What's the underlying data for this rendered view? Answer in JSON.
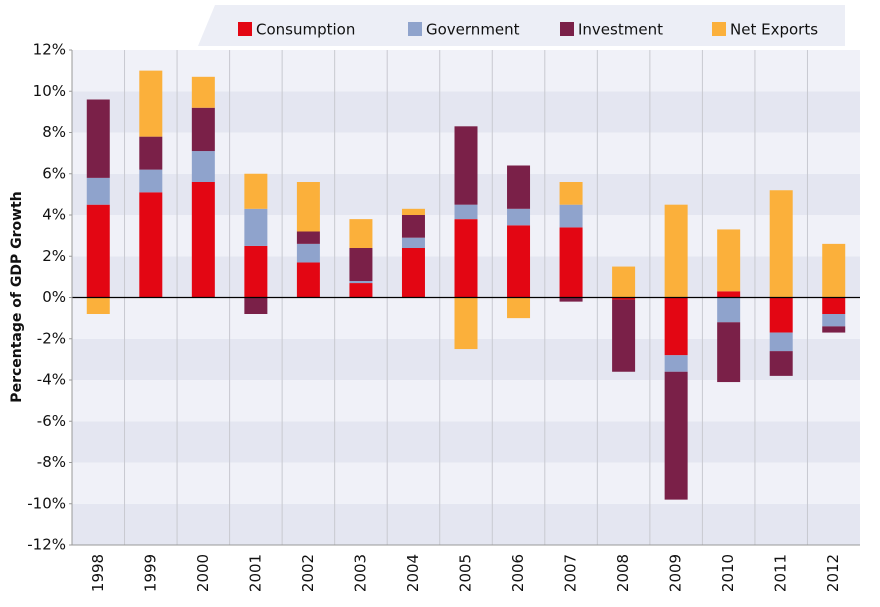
{
  "chart_data": {
    "type": "stacked_bar",
    "y_axis_label": "Percentage of GDP Growth",
    "categories": [
      "1998",
      "1999",
      "2000",
      "2001",
      "2002",
      "2003",
      "2004",
      "2005",
      "2006",
      "2007",
      "2008",
      "2009",
      "2010",
      "2011",
      "2012"
    ],
    "series": [
      {
        "name": "Consumption",
        "color": "#e30613",
        "values": [
          4.5,
          5.1,
          5.6,
          2.5,
          1.7,
          0.7,
          2.4,
          3.8,
          3.5,
          3.4,
          -0.1,
          -2.8,
          0.3,
          -1.7,
          -0.8
        ]
      },
      {
        "name": "Government",
        "color": "#8fa3cc",
        "values": [
          1.3,
          1.1,
          1.5,
          1.8,
          0.9,
          0.1,
          0.5,
          0.7,
          0.8,
          1.1,
          0,
          -0.8,
          -1.2,
          -0.9,
          -0.6
        ]
      },
      {
        "name": "Investment",
        "color": "#7a2048",
        "values": [
          3.8,
          1.6,
          2.1,
          -0.8,
          0.6,
          1.6,
          1.1,
          3.8,
          2.1,
          -0.2,
          -3.5,
          -6.2,
          -2.9,
          -1.2,
          -0.3
        ]
      },
      {
        "name": "Net Exports",
        "color": "#fbb03b",
        "values": [
          -0.8,
          3.2,
          1.5,
          1.7,
          2.4,
          1.4,
          0.3,
          -2.5,
          -1.0,
          1.1,
          1.5,
          4.5,
          3.0,
          5.2,
          2.6
        ]
      }
    ],
    "ylim": [
      -12,
      12
    ],
    "yticks": [
      {
        "value": -12,
        "label": "-12%"
      },
      {
        "value": -10,
        "label": "-10%"
      },
      {
        "value": -8,
        "label": "-8%"
      },
      {
        "value": -6,
        "label": "-6%"
      },
      {
        "value": -4,
        "label": "-4%"
      },
      {
        "value": -2,
        "label": "-2%"
      },
      {
        "value": 0,
        "label": "0%"
      },
      {
        "value": 2,
        "label": "2%"
      },
      {
        "value": 4,
        "label": "4%"
      },
      {
        "value": 6,
        "label": "6%"
      },
      {
        "value": 8,
        "label": "8%"
      },
      {
        "value": 10,
        "label": "10%"
      },
      {
        "value": 12,
        "label": "12%"
      }
    ],
    "legend": "top"
  }
}
